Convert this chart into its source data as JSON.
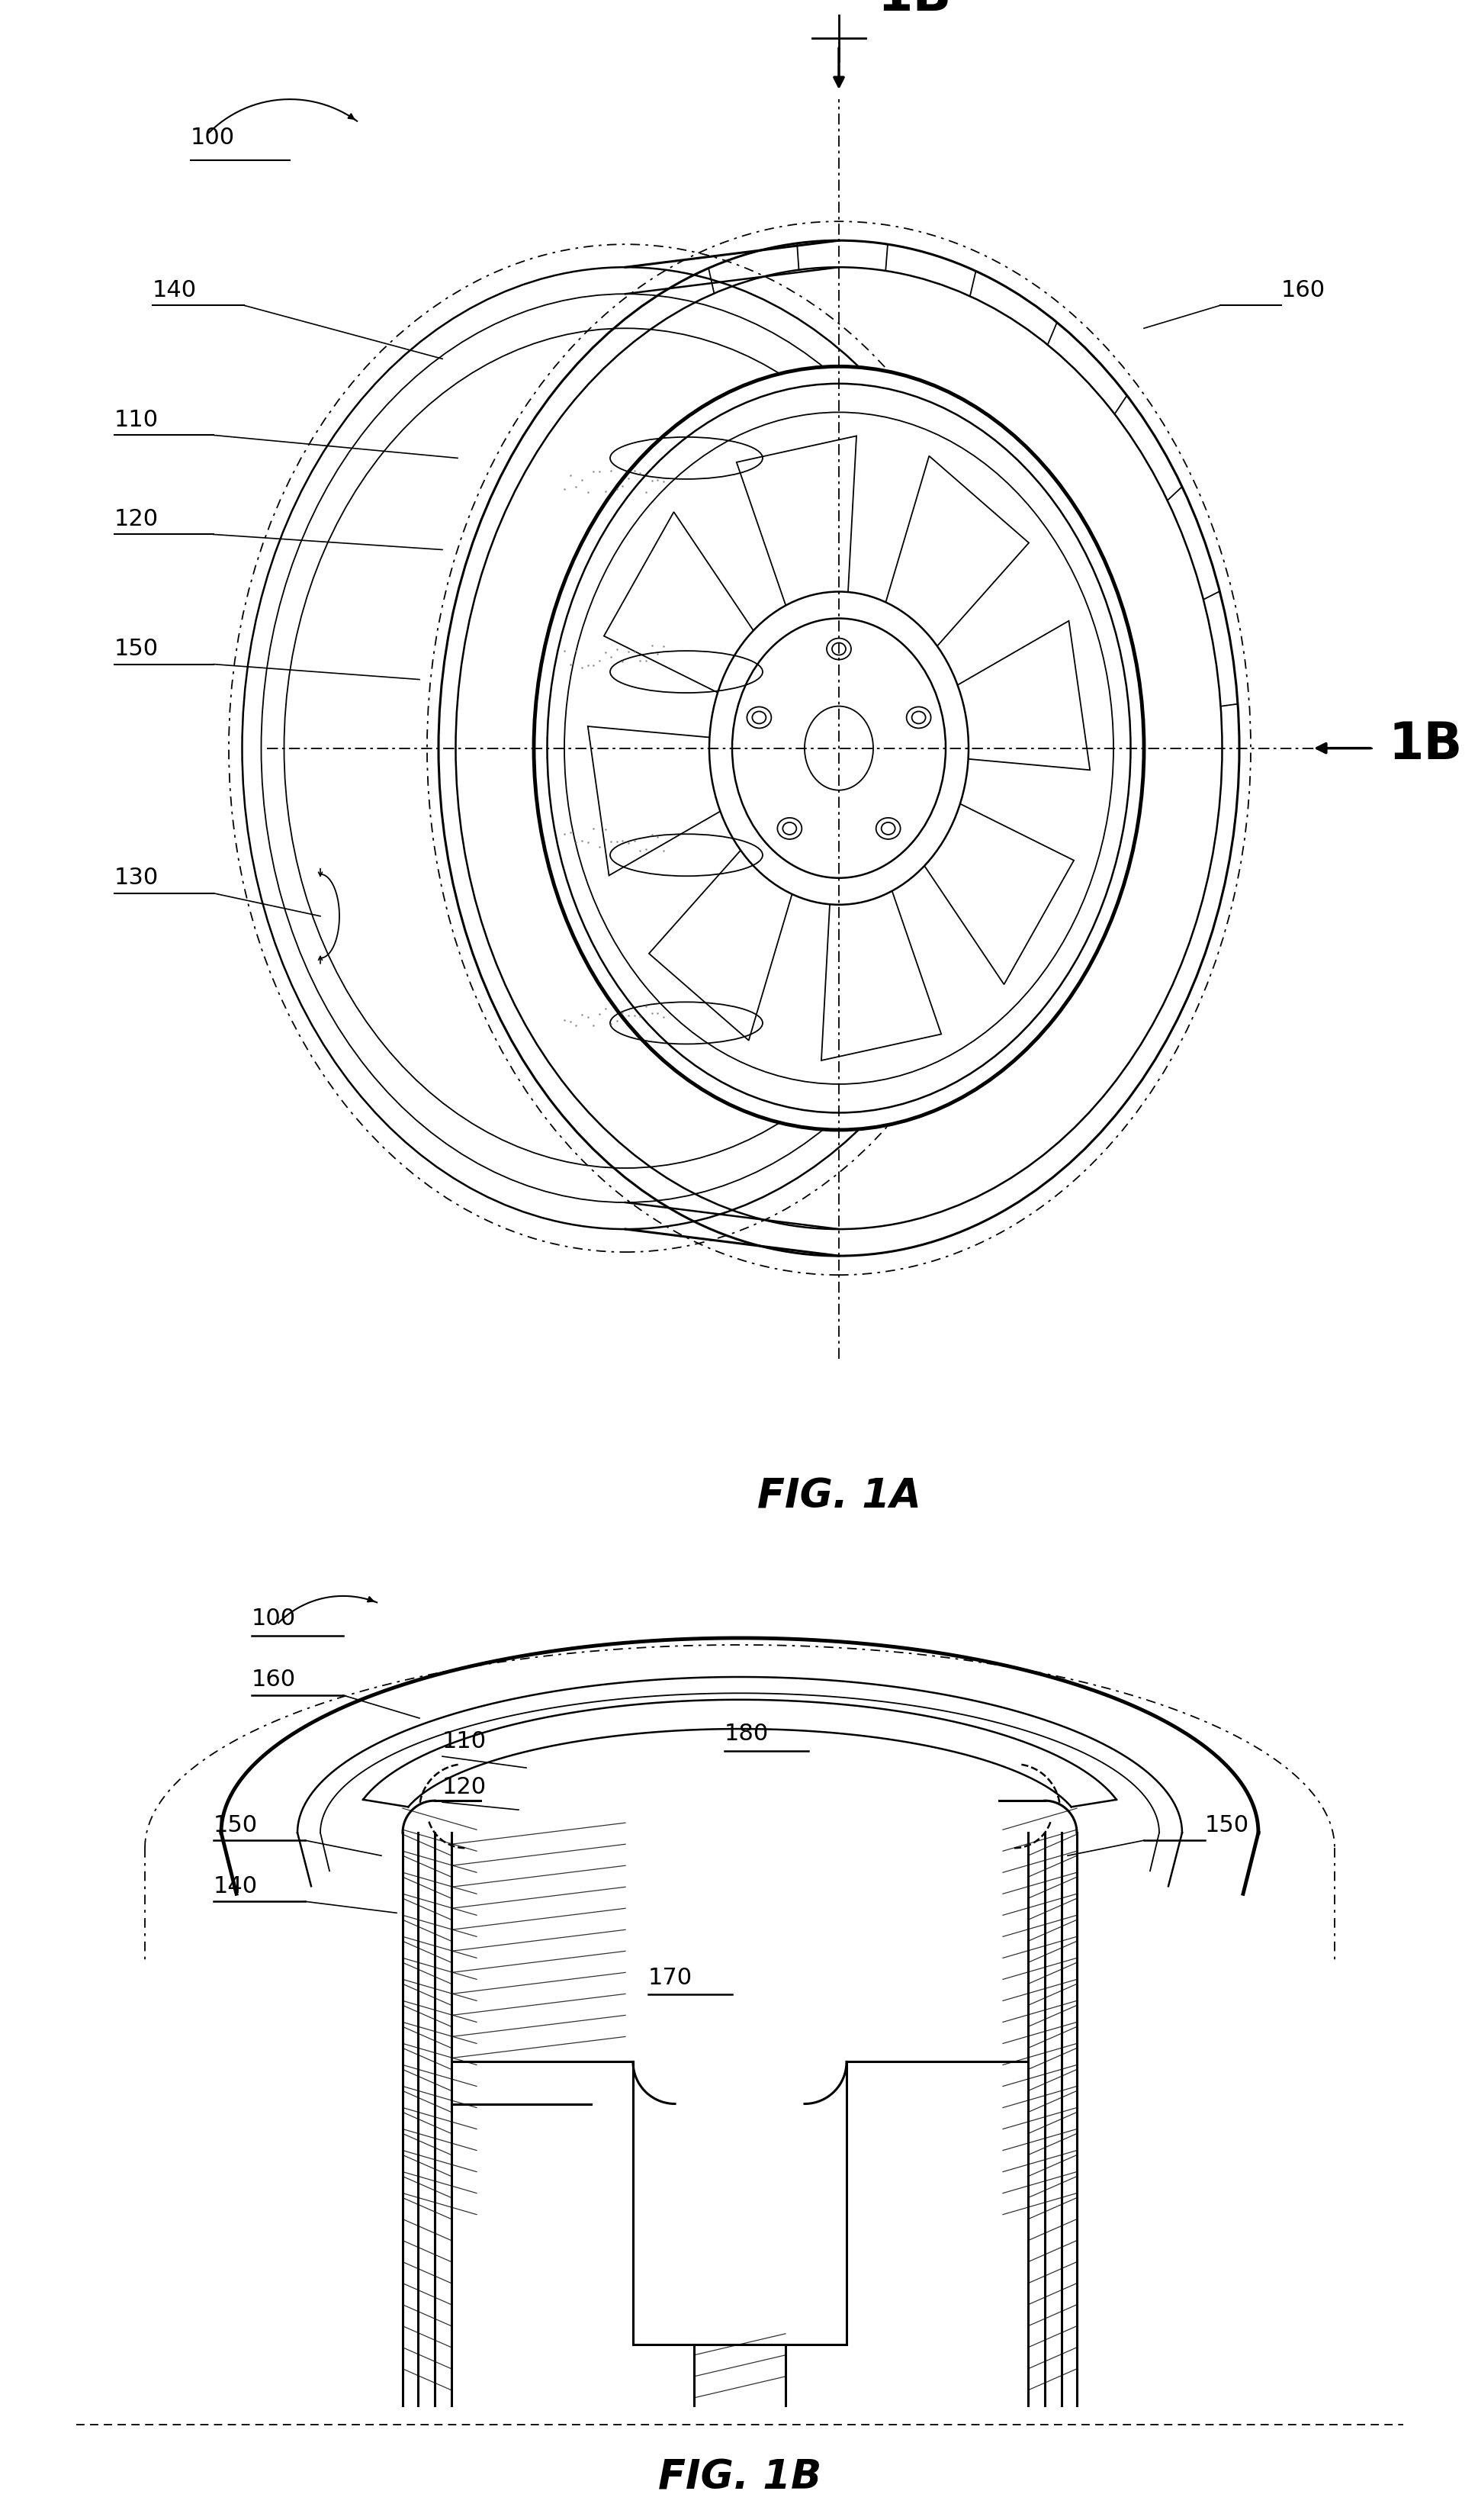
{
  "fig1a_label": "FIG. 1A",
  "fig1b_label": "FIG. 1B",
  "bg_color": "#ffffff",
  "line_color": "#000000",
  "font_size_label": 22,
  "font_size_fig": 38,
  "font_size_1B": 48,
  "lw_main": 2.2,
  "lw_thick": 3.5,
  "lw_thin": 1.3,
  "lw_med": 1.8
}
